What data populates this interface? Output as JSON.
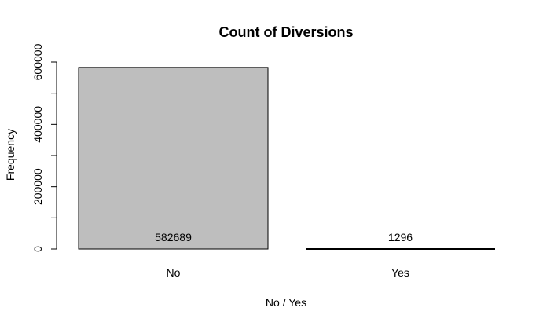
{
  "chart_data": {
    "type": "bar",
    "title": "Count of Diversions",
    "xlabel": "No / Yes",
    "ylabel": "Frequency",
    "categories": [
      "No",
      "Yes"
    ],
    "values": [
      582689,
      1296
    ],
    "data_labels": [
      "582689",
      "1296"
    ],
    "y_ticks": [
      0,
      200000,
      400000,
      600000
    ],
    "y_tick_labels": [
      "0",
      "200000",
      "400000",
      "600000"
    ],
    "ylim": [
      0,
      600000
    ],
    "grid": false,
    "bar_fill": "#bebebe",
    "bar_stroke": "#000000"
  }
}
